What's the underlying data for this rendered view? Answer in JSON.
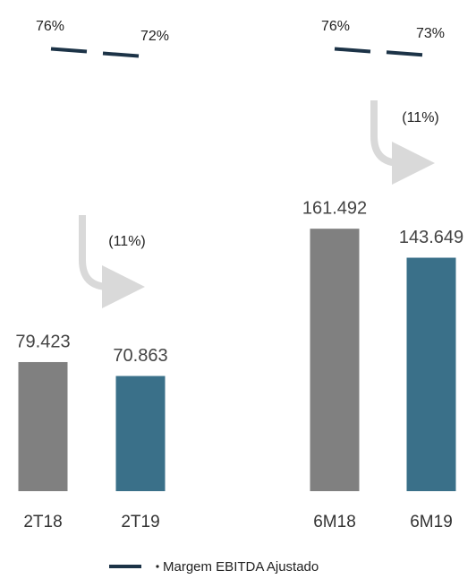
{
  "chart_data": {
    "type": "bar",
    "categories": [
      "2T18",
      "2T19",
      "6M18",
      "6M19"
    ],
    "values": [
      79.423,
      70.863,
      161.492,
      143.649
    ],
    "colors": [
      "#808080",
      "#3a7089",
      "#808080",
      "#3a7089"
    ],
    "ylim": [
      0,
      300
    ],
    "series": [
      {
        "name": "Margem EBITDA Ajustado",
        "color": "#1c3347",
        "axis": "y2",
        "values": [
          76,
          72,
          76,
          73
        ],
        "value_labels": [
          "76%",
          "72%",
          "76%",
          "73%"
        ]
      }
    ],
    "y2lim": [
      0,
      100
    ],
    "annotations": [
      "(11%)",
      "(11%)"
    ]
  }
}
